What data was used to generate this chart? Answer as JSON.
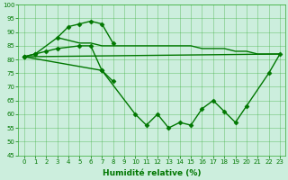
{
  "xlabel": "Humidité relative (%)",
  "background_color": "#cceedd",
  "grid_color": "#33aa33",
  "line_color": "#007700",
  "x_all": [
    0,
    1,
    2,
    3,
    4,
    5,
    6,
    7,
    8,
    9,
    10,
    11,
    12,
    13,
    14,
    15,
    16,
    17,
    18,
    19,
    20,
    21,
    22,
    23
  ],
  "line1_x": [
    0,
    1,
    3,
    4,
    5,
    6,
    7,
    8
  ],
  "line1_y": [
    81,
    82,
    88,
    92,
    93,
    94,
    93,
    86
  ],
  "line2_x": [
    0,
    1,
    2,
    3,
    5,
    6,
    7,
    8
  ],
  "line2_y": [
    81,
    82,
    83,
    84,
    85,
    85,
    76,
    72
  ],
  "line3_x": [
    0,
    7,
    10,
    11,
    12,
    13,
    14,
    15,
    16,
    17,
    18,
    19,
    20,
    22,
    23
  ],
  "line3_y": [
    81,
    76,
    60,
    56,
    60,
    55,
    57,
    56,
    62,
    65,
    61,
    57,
    63,
    75,
    82
  ],
  "line4_x": [
    0,
    23
  ],
  "line4_y": [
    81,
    82
  ],
  "line5_x": [
    3,
    4,
    5,
    6,
    7,
    8,
    9,
    10,
    11,
    12,
    13,
    14,
    15,
    16,
    17,
    18,
    19,
    20,
    21,
    22,
    23
  ],
  "line5_y": [
    88,
    87,
    86,
    86,
    85,
    85,
    85,
    85,
    85,
    85,
    85,
    85,
    85,
    84,
    84,
    84,
    83,
    83,
    82,
    82,
    82
  ],
  "ylim": [
    45,
    100
  ],
  "yticks": [
    45,
    50,
    55,
    60,
    65,
    70,
    75,
    80,
    85,
    90,
    95,
    100
  ],
  "xticks": [
    0,
    1,
    2,
    3,
    4,
    5,
    6,
    7,
    8,
    9,
    10,
    11,
    12,
    13,
    14,
    15,
    16,
    17,
    18,
    19,
    20,
    21,
    22,
    23
  ],
  "marker": "D",
  "markersize": 2.5,
  "linewidth": 1.0,
  "tick_fontsize": 5.0,
  "xlabel_fontsize": 6.5
}
